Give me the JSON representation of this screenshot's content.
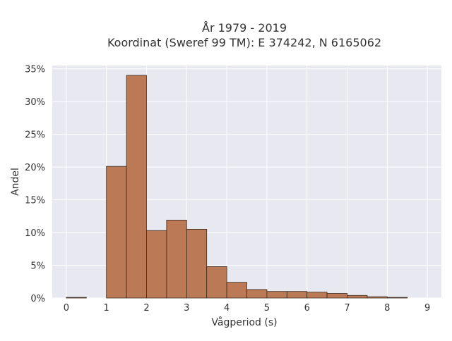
{
  "title_line1": "År 1979 - 2019",
  "title_line2": "Koordinat (Sweref 99 TM): E 374242, N 6165062",
  "colors": {
    "plot_bg": "#e8e8f0",
    "grid": "#ffffff",
    "bar_fill": "#bb7a55",
    "bar_stroke": "#3a2a1e"
  },
  "chart_data": {
    "type": "bar",
    "title": "År 1979 - 2019\nKoordinat (Sweref 99 TM): E 374242, N 6165062",
    "xlabel": "Vågperiod (s)",
    "ylabel": "Andel",
    "xlim": [
      -0.35,
      9.35
    ],
    "ylim": [
      0,
      0.355
    ],
    "grid": true,
    "legend": "none",
    "bin_width": 0.5,
    "bins": [
      {
        "x0": 0.0,
        "x1": 0.5,
        "value": 0.001
      },
      {
        "x0": 0.5,
        "x1": 1.0,
        "value": 0.0
      },
      {
        "x0": 1.0,
        "x1": 1.5,
        "value": 0.201
      },
      {
        "x0": 1.5,
        "x1": 2.0,
        "value": 0.34
      },
      {
        "x0": 2.0,
        "x1": 2.5,
        "value": 0.103
      },
      {
        "x0": 2.5,
        "x1": 3.0,
        "value": 0.119
      },
      {
        "x0": 3.0,
        "x1": 3.5,
        "value": 0.105
      },
      {
        "x0": 3.5,
        "x1": 4.0,
        "value": 0.048
      },
      {
        "x0": 4.0,
        "x1": 4.5,
        "value": 0.024
      },
      {
        "x0": 4.5,
        "x1": 5.0,
        "value": 0.013
      },
      {
        "x0": 5.0,
        "x1": 5.5,
        "value": 0.01
      },
      {
        "x0": 5.5,
        "x1": 6.0,
        "value": 0.01
      },
      {
        "x0": 6.0,
        "x1": 6.5,
        "value": 0.009
      },
      {
        "x0": 6.5,
        "x1": 7.0,
        "value": 0.007
      },
      {
        "x0": 7.0,
        "x1": 7.5,
        "value": 0.004
      },
      {
        "x0": 7.5,
        "x1": 8.0,
        "value": 0.002
      },
      {
        "x0": 8.0,
        "x1": 8.5,
        "value": 0.001
      }
    ],
    "x_ticks": [
      0,
      1,
      2,
      3,
      4,
      5,
      6,
      7,
      8,
      9
    ],
    "x_tick_labels": [
      "0",
      "1",
      "2",
      "3",
      "4",
      "5",
      "6",
      "7",
      "8",
      "9"
    ],
    "y_ticks": [
      0,
      0.05,
      0.1,
      0.15,
      0.2,
      0.25,
      0.3,
      0.35
    ],
    "y_tick_labels": [
      "0%",
      "5%",
      "10%",
      "15%",
      "20%",
      "25%",
      "30%",
      "35%"
    ]
  }
}
